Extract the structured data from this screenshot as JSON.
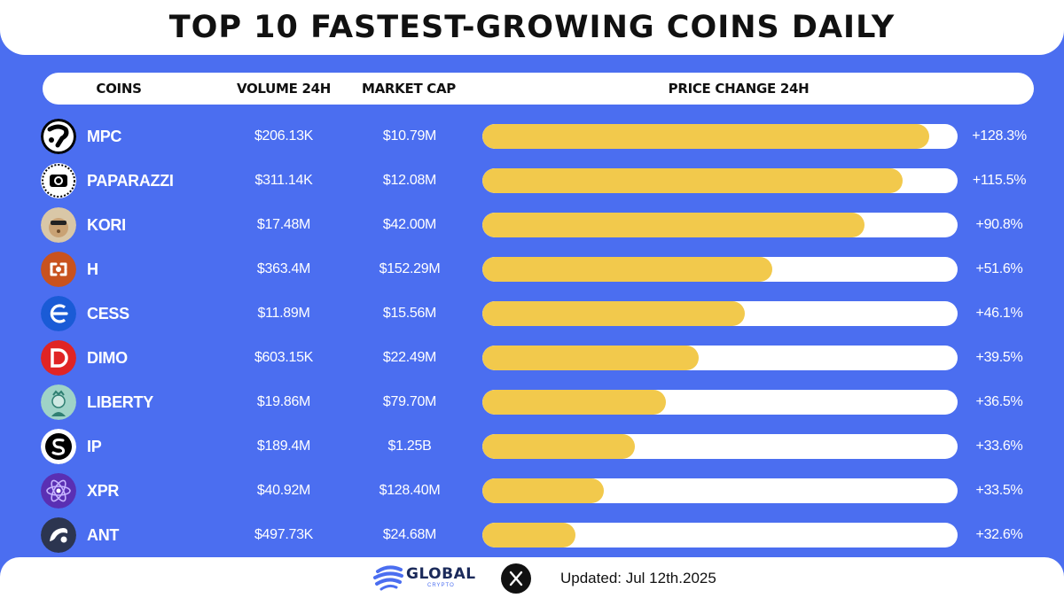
{
  "title": "TOP 10 FASTEST-GROWING COINS DAILY",
  "headers": {
    "coins": "COINS",
    "volume": "VOLUME 24H",
    "market_cap": "MARKET CAP",
    "price_change": "PRICE CHANGE 24H"
  },
  "chart_data": {
    "type": "bar",
    "orientation": "horizontal",
    "title": "TOP 10 FASTEST-GROWING COINS DAILY",
    "xlabel": "PRICE CHANGE 24H",
    "xlim": [
      0,
      145
    ],
    "categories": [
      "MPC",
      "PAPARAZZI",
      "KORI",
      "H",
      "CESS",
      "DIMO",
      "LIBERTY",
      "IP",
      "XPR",
      "ANT"
    ],
    "values": [
      128.3,
      115.5,
      90.8,
      51.6,
      46.1,
      39.5,
      36.5,
      33.6,
      33.5,
      32.6
    ],
    "rows": [
      {
        "symbol": "MPC",
        "volume": "$206.13K",
        "market_cap": "$10.79M",
        "change": "+128.3%",
        "fill_fraction": 0.94,
        "logo": "mpc-logo"
      },
      {
        "symbol": "PAPARAZZI",
        "volume": "$311.14K",
        "market_cap": "$12.08M",
        "change": "+115.5%",
        "fill_fraction": 0.885,
        "logo": "paparazzi-logo"
      },
      {
        "symbol": "KORI",
        "volume": "$17.48M",
        "market_cap": "$42.00M",
        "change": "+90.8%",
        "fill_fraction": 0.805,
        "logo": "kori-logo"
      },
      {
        "symbol": "H",
        "volume": "$363.4M",
        "market_cap": "$152.29M",
        "change": "+51.6%",
        "fill_fraction": 0.61,
        "logo": "h-logo"
      },
      {
        "symbol": "CESS",
        "volume": "$11.89M",
        "market_cap": "$15.56M",
        "change": "+46.1%",
        "fill_fraction": 0.553,
        "logo": "cess-logo"
      },
      {
        "symbol": "DIMO",
        "volume": "$603.15K",
        "market_cap": "$22.49M",
        "change": "+39.5%",
        "fill_fraction": 0.455,
        "logo": "dimo-logo"
      },
      {
        "symbol": "LIBERTY",
        "volume": "$19.86M",
        "market_cap": "$79.70M",
        "change": "+36.5%",
        "fill_fraction": 0.387,
        "logo": "liberty-logo"
      },
      {
        "symbol": "IP",
        "volume": "$189.4M",
        "market_cap": "$1.25B",
        "change": "+33.6%",
        "fill_fraction": 0.32,
        "logo": "ip-logo"
      },
      {
        "symbol": "XPR",
        "volume": "$40.92M",
        "market_cap": "$128.40M",
        "change": "+33.5%",
        "fill_fraction": 0.255,
        "logo": "xpr-logo"
      },
      {
        "symbol": "ANT",
        "volume": "$497.73K",
        "market_cap": "$24.68M",
        "change": "+32.6%",
        "fill_fraction": 0.195,
        "logo": "ant-logo"
      }
    ]
  },
  "footer": {
    "brand_name": "GLOBAL",
    "brand_sub": "CRYPTO",
    "updated": "Updated: Jul 12th.2025"
  },
  "colors": {
    "background": "#4b6ef0",
    "bar_fill": "#f2c94c",
    "bar_track": "#ffffff"
  }
}
